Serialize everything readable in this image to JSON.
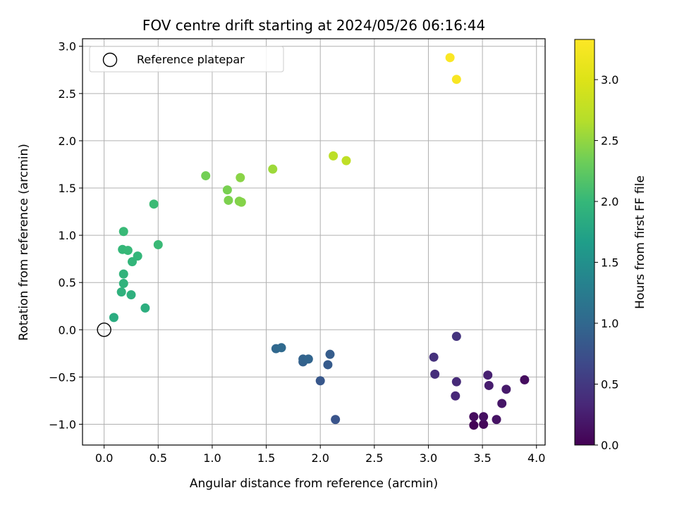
{
  "chart_data": {
    "type": "scatter",
    "title": "FOV centre drift starting at 2024/05/26 06:16:44",
    "xlabel": "Angular distance from reference (arcmin)",
    "ylabel": "Rotation from reference (arcmin)",
    "xlim": [
      -0.2,
      4.08
    ],
    "ylim": [
      -1.22,
      3.08
    ],
    "xticks": [
      0.0,
      0.5,
      1.0,
      1.5,
      2.0,
      2.5,
      3.0,
      3.5,
      4.0
    ],
    "xtick_labels": [
      "0.0",
      "0.5",
      "1.0",
      "1.5",
      "2.0",
      "2.5",
      "3.0",
      "3.5",
      "4.0"
    ],
    "yticks": [
      -1.0,
      -0.5,
      0.0,
      0.5,
      1.0,
      1.5,
      2.0,
      2.5,
      3.0
    ],
    "ytick_labels": [
      "−1.0",
      "−0.5",
      "0.0",
      "0.5",
      "1.0",
      "1.5",
      "2.0",
      "2.5",
      "3.0"
    ],
    "grid": true,
    "legend": {
      "placement": "top-left",
      "entries": [
        "Reference platepar"
      ]
    },
    "reference_point": {
      "x": 0.0,
      "y": 0.0
    },
    "colorbar": {
      "label": "Hours from first FF file",
      "range": [
        0.0,
        3.33
      ],
      "ticks": [
        0.0,
        0.5,
        1.0,
        1.5,
        2.0,
        2.5,
        3.0
      ],
      "tick_labels": [
        "0.0",
        "0.5",
        "1.0",
        "1.5",
        "2.0",
        "2.5",
        "3.0"
      ],
      "colormap": "viridis"
    },
    "points": [
      {
        "x": 3.42,
        "y": -1.01,
        "t": 0.03
      },
      {
        "x": 3.51,
        "y": -1.0,
        "t": 0.06
      },
      {
        "x": 3.42,
        "y": -0.92,
        "t": 0.09
      },
      {
        "x": 3.51,
        "y": -0.92,
        "t": 0.12
      },
      {
        "x": 3.63,
        "y": -0.95,
        "t": 0.15
      },
      {
        "x": 3.68,
        "y": -0.78,
        "t": 0.18
      },
      {
        "x": 3.72,
        "y": -0.63,
        "t": 0.21
      },
      {
        "x": 3.89,
        "y": -0.53,
        "t": 0.1
      },
      {
        "x": 3.56,
        "y": -0.59,
        "t": 0.24
      },
      {
        "x": 3.55,
        "y": -0.48,
        "t": 0.27
      },
      {
        "x": 3.25,
        "y": -0.7,
        "t": 0.33
      },
      {
        "x": 3.26,
        "y": -0.55,
        "t": 0.36
      },
      {
        "x": 3.06,
        "y": -0.47,
        "t": 0.39
      },
      {
        "x": 3.05,
        "y": -0.29,
        "t": 0.42
      },
      {
        "x": 3.26,
        "y": -0.07,
        "t": 0.45
      },
      {
        "x": 2.14,
        "y": -0.95,
        "t": 0.78
      },
      {
        "x": 2.0,
        "y": -0.54,
        "t": 0.82
      },
      {
        "x": 2.07,
        "y": -0.37,
        "t": 0.86
      },
      {
        "x": 2.09,
        "y": -0.26,
        "t": 0.88
      },
      {
        "x": 1.84,
        "y": -0.34,
        "t": 0.92
      },
      {
        "x": 1.84,
        "y": -0.31,
        "t": 0.95
      },
      {
        "x": 1.89,
        "y": -0.31,
        "t": 0.97
      },
      {
        "x": 1.59,
        "y": -0.2,
        "t": 1.0
      },
      {
        "x": 1.64,
        "y": -0.19,
        "t": 1.02
      },
      {
        "x": 0.09,
        "y": 0.13,
        "t": 1.85
      },
      {
        "x": 0.38,
        "y": 0.23,
        "t": 1.88
      },
      {
        "x": 0.25,
        "y": 0.37,
        "t": 1.9
      },
      {
        "x": 0.16,
        "y": 0.4,
        "t": 1.92
      },
      {
        "x": 0.18,
        "y": 0.49,
        "t": 1.93
      },
      {
        "x": 0.18,
        "y": 0.59,
        "t": 1.95
      },
      {
        "x": 0.26,
        "y": 0.72,
        "t": 1.97
      },
      {
        "x": 0.31,
        "y": 0.78,
        "t": 1.98
      },
      {
        "x": 0.17,
        "y": 0.85,
        "t": 2.0
      },
      {
        "x": 0.22,
        "y": 0.84,
        "t": 2.01
      },
      {
        "x": 0.18,
        "y": 1.04,
        "t": 2.02
      },
      {
        "x": 0.5,
        "y": 0.9,
        "t": 2.03
      },
      {
        "x": 0.46,
        "y": 1.33,
        "t": 2.04
      },
      {
        "x": 0.94,
        "y": 1.63,
        "t": 2.35
      },
      {
        "x": 1.14,
        "y": 1.48,
        "t": 2.38
      },
      {
        "x": 1.15,
        "y": 1.37,
        "t": 2.4
      },
      {
        "x": 1.25,
        "y": 1.36,
        "t": 2.42
      },
      {
        "x": 1.27,
        "y": 1.35,
        "t": 2.44
      },
      {
        "x": 1.26,
        "y": 1.61,
        "t": 2.46
      },
      {
        "x": 1.56,
        "y": 1.7,
        "t": 2.55
      },
      {
        "x": 2.12,
        "y": 1.84,
        "t": 2.72
      },
      {
        "x": 2.24,
        "y": 1.79,
        "t": 2.75
      },
      {
        "x": 3.2,
        "y": 2.88,
        "t": 3.3
      },
      {
        "x": 3.26,
        "y": 2.65,
        "t": 3.28
      }
    ]
  }
}
